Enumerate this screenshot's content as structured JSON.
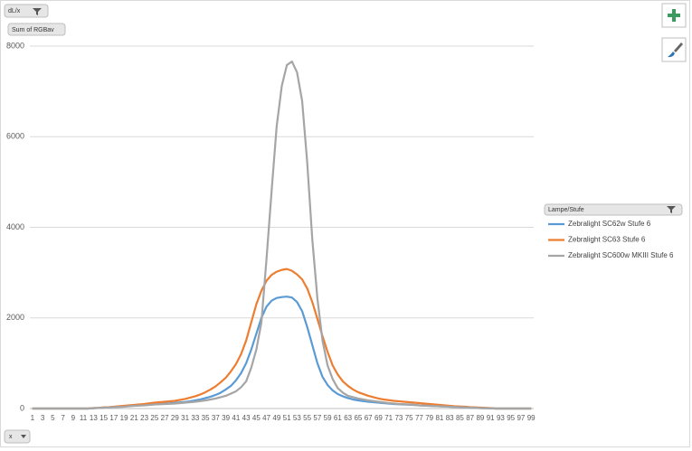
{
  "chart_data": {
    "type": "line",
    "filter_button": "dL/x",
    "value_field": "Sum of RGBav",
    "legend_title": "Lampe/Stufe",
    "axis_field": "x",
    "categories": [
      "1",
      null,
      "3",
      null,
      "5",
      null,
      "7",
      null,
      "9",
      null,
      "11",
      null,
      "13",
      null,
      "15",
      null,
      "17",
      null,
      "19",
      null,
      "21",
      null,
      "23",
      null,
      "25",
      null,
      "27",
      null,
      "29",
      null,
      "31",
      null,
      "33",
      null,
      "35",
      null,
      "37",
      null,
      "39",
      null,
      "41",
      null,
      "43",
      null,
      "45",
      null,
      "47",
      null,
      "49",
      null,
      "51",
      null,
      "53",
      null,
      "55",
      null,
      "57",
      null,
      "59",
      null,
      "61",
      null,
      "63",
      null,
      "65",
      null,
      "67",
      null,
      "69",
      null,
      "71",
      null,
      "73",
      null,
      "75",
      null,
      "77",
      null,
      "79",
      null,
      "81",
      null,
      "83",
      null,
      "85",
      null,
      "87",
      null,
      "89",
      null,
      "91",
      null,
      "93",
      null,
      "95",
      null,
      "97",
      null,
      "99"
    ],
    "series": [
      {
        "name": "Zebralight SC62w Stufe 6",
        "color": "#5b9bd5",
        "values": [
          0,
          0,
          0,
          0,
          0,
          0,
          0,
          0,
          0,
          0,
          0,
          0,
          8,
          12,
          20,
          25,
          35,
          40,
          50,
          55,
          65,
          70,
          80,
          85,
          95,
          100,
          110,
          115,
          125,
          135,
          145,
          160,
          180,
          200,
          230,
          260,
          300,
          350,
          420,
          500,
          620,
          780,
          1000,
          1300,
          1650,
          2000,
          2250,
          2380,
          2440,
          2460,
          2470,
          2450,
          2350,
          2150,
          1800,
          1400,
          1000,
          700,
          520,
          400,
          320,
          270,
          230,
          200,
          180,
          165,
          150,
          140,
          130,
          120,
          110,
          100,
          95,
          90,
          85,
          80,
          70,
          65,
          60,
          55,
          50,
          45,
          40,
          35,
          30,
          25,
          20,
          15,
          10,
          8,
          5,
          0,
          0,
          0,
          0,
          0,
          0,
          0,
          0
        ]
      },
      {
        "name": "Zebralight SC63 Stufe 6",
        "color": "#ed7d31",
        "values": [
          0,
          0,
          0,
          0,
          0,
          0,
          0,
          0,
          0,
          0,
          0,
          0,
          10,
          15,
          25,
          30,
          40,
          50,
          60,
          70,
          80,
          90,
          100,
          115,
          130,
          140,
          150,
          160,
          170,
          190,
          210,
          240,
          270,
          310,
          360,
          420,
          490,
          580,
          680,
          820,
          980,
          1200,
          1500,
          1900,
          2300,
          2600,
          2820,
          2950,
          3020,
          3060,
          3080,
          3040,
          2960,
          2850,
          2650,
          2350,
          1980,
          1600,
          1250,
          950,
          750,
          600,
          500,
          420,
          360,
          320,
          280,
          250,
          220,
          200,
          185,
          170,
          160,
          150,
          140,
          130,
          120,
          110,
          100,
          90,
          80,
          70,
          60,
          50,
          45,
          40,
          30,
          25,
          20,
          15,
          10,
          0,
          0,
          0,
          0,
          0,
          0,
          0,
          0
        ]
      },
      {
        "name": "Zebralight SC600w MKIII Stufe 6",
        "color": "#a5a5a5",
        "values": [
          0,
          0,
          0,
          0,
          0,
          0,
          0,
          0,
          0,
          0,
          0,
          0,
          10,
          12,
          20,
          25,
          30,
          35,
          40,
          50,
          60,
          65,
          70,
          80,
          90,
          95,
          100,
          105,
          110,
          120,
          130,
          140,
          150,
          165,
          180,
          200,
          220,
          250,
          280,
          330,
          380,
          470,
          600,
          900,
          1300,
          1900,
          3300,
          4800,
          6230,
          7120,
          7580,
          7660,
          7420,
          6790,
          5430,
          3730,
          2430,
          1500,
          950,
          650,
          450,
          350,
          280,
          250,
          220,
          200,
          180,
          165,
          150,
          135,
          120,
          110,
          100,
          95,
          90,
          80,
          70,
          65,
          60,
          55,
          50,
          45,
          40,
          35,
          30,
          25,
          20,
          15,
          10,
          8,
          5,
          0,
          0,
          0,
          0,
          0,
          0,
          0,
          0
        ]
      }
    ],
    "ylim": [
      0,
      8000
    ],
    "yticks": [
      0,
      2000,
      4000,
      6000,
      8000
    ],
    "grid": true,
    "legend": "right"
  }
}
